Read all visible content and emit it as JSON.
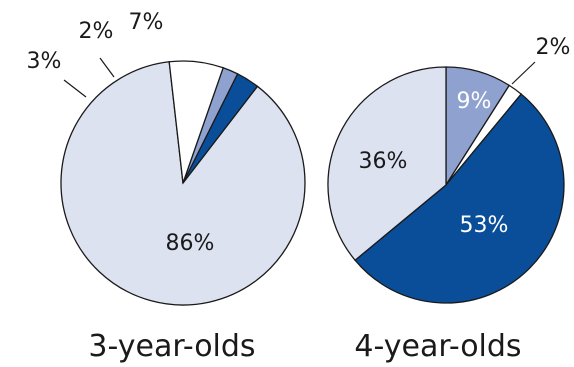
{
  "chart_data": [
    {
      "type": "pie",
      "title": "3-year-olds",
      "slices": [
        {
          "value": 86,
          "label": "86%",
          "color": "#dde2f1"
        },
        {
          "value": 3,
          "label": "3%",
          "color": "#0a4e9a"
        },
        {
          "value": 2,
          "label": "2%",
          "color": "#8fa2cf"
        },
        {
          "value": 7,
          "label": "7%",
          "color": "#ffffff"
        }
      ]
    },
    {
      "type": "pie",
      "title": "4-year-olds",
      "slices": [
        {
          "value": 9,
          "label": "9%",
          "color": "#8fa2cf"
        },
        {
          "value": 2,
          "label": "2%",
          "color": "#ffffff"
        },
        {
          "value": 53,
          "label": "53%",
          "color": "#0a4e9a"
        },
        {
          "value": 36,
          "label": "36%",
          "color": "#dde2f1"
        }
      ]
    }
  ]
}
